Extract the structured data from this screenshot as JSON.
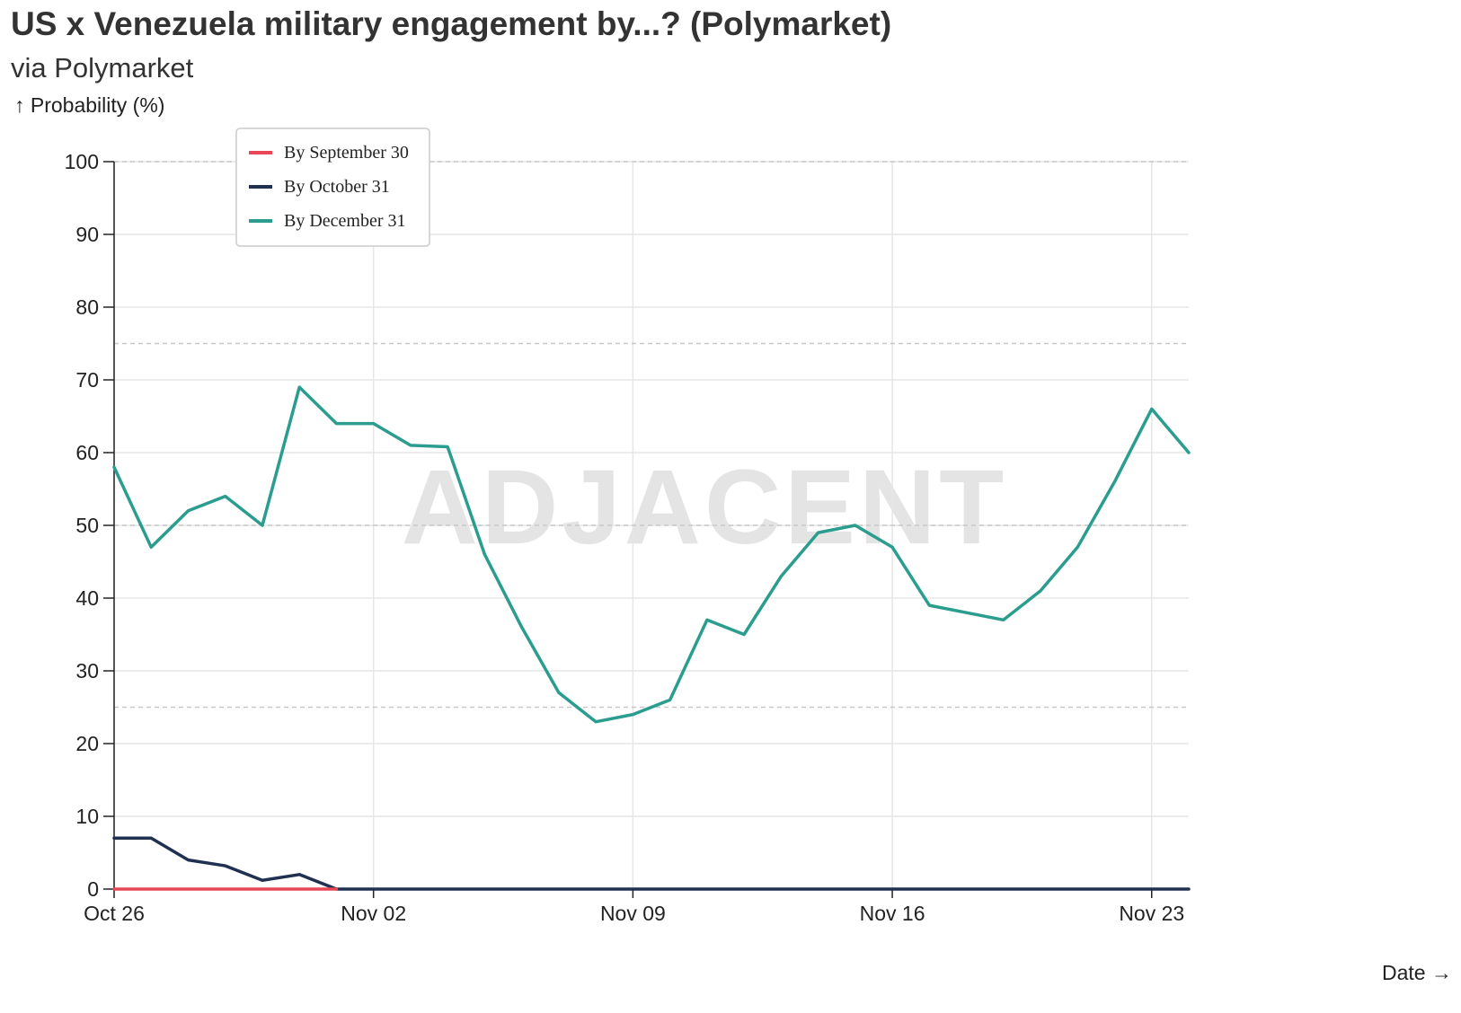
{
  "header": {
    "title": "US x Venezuela military engagement by...? (Polymarket)",
    "subtitle": "via Polymarket"
  },
  "watermark": "ADJACENT",
  "colors": {
    "by_september_30": "#e84855",
    "by_october_31": "#1f3050",
    "by_december_31": "#2a9d8f",
    "grid": "#e6e6e6",
    "dashed_grid": "#c8c8c8",
    "axis": "#222222"
  },
  "chart_data": {
    "type": "line",
    "title": "US x Venezuela military engagement by...? (Polymarket)",
    "subtitle": "via Polymarket",
    "ylabel": "↑ Probability (%)",
    "xlabel": "Date →",
    "ylim": [
      0,
      100
    ],
    "xlim": [
      "2025-10-26",
      "2025-11-24"
    ],
    "yticks": [
      0,
      10,
      20,
      30,
      40,
      50,
      60,
      70,
      80,
      90,
      100
    ],
    "xticks": [
      {
        "date": "2025-10-26",
        "label": "Oct 26"
      },
      {
        "date": "2025-11-02",
        "label": "Nov 02"
      },
      {
        "date": "2025-11-09",
        "label": "Nov 09"
      },
      {
        "date": "2025-11-16",
        "label": "Nov 16"
      },
      {
        "date": "2025-11-23",
        "label": "Nov 23"
      }
    ],
    "dashed_lines": [
      25,
      50,
      75,
      100
    ],
    "grid": true,
    "legend_position": "top-left",
    "series": [
      {
        "name": "By September 30",
        "color": "#e84855",
        "points": [
          [
            "2025-10-26",
            0
          ],
          [
            "2025-10-27",
            0
          ],
          [
            "2025-10-28",
            0
          ],
          [
            "2025-10-29",
            0
          ],
          [
            "2025-10-30",
            0
          ],
          [
            "2025-10-31",
            0
          ],
          [
            "2025-11-01",
            0
          ]
        ]
      },
      {
        "name": "By October 31",
        "color": "#1f3050",
        "points": [
          [
            "2025-10-26",
            7
          ],
          [
            "2025-10-27",
            7
          ],
          [
            "2025-10-28",
            4
          ],
          [
            "2025-10-29",
            3.2
          ],
          [
            "2025-10-30",
            1.2
          ],
          [
            "2025-10-31",
            2
          ],
          [
            "2025-11-01",
            0
          ],
          [
            "2025-11-02",
            0
          ],
          [
            "2025-11-03",
            0
          ],
          [
            "2025-11-04",
            0
          ],
          [
            "2025-11-05",
            0
          ],
          [
            "2025-11-06",
            0
          ],
          [
            "2025-11-07",
            0
          ],
          [
            "2025-11-08",
            0
          ],
          [
            "2025-11-09",
            0
          ],
          [
            "2025-11-10",
            0
          ],
          [
            "2025-11-11",
            0
          ],
          [
            "2025-11-12",
            0
          ],
          [
            "2025-11-13",
            0
          ],
          [
            "2025-11-14",
            0
          ],
          [
            "2025-11-15",
            0
          ],
          [
            "2025-11-16",
            0
          ],
          [
            "2025-11-17",
            0
          ],
          [
            "2025-11-18",
            0
          ],
          [
            "2025-11-19",
            0
          ],
          [
            "2025-11-20",
            0
          ],
          [
            "2025-11-21",
            0
          ],
          [
            "2025-11-22",
            0
          ],
          [
            "2025-11-23",
            0
          ],
          [
            "2025-11-24",
            0
          ]
        ]
      },
      {
        "name": "By December 31",
        "color": "#2a9d8f",
        "points": [
          [
            "2025-10-26",
            58
          ],
          [
            "2025-10-27",
            47
          ],
          [
            "2025-10-28",
            52
          ],
          [
            "2025-10-29",
            54
          ],
          [
            "2025-10-30",
            50
          ],
          [
            "2025-10-31",
            69
          ],
          [
            "2025-11-01",
            64
          ],
          [
            "2025-11-02",
            64
          ],
          [
            "2025-11-03",
            61
          ],
          [
            "2025-11-04",
            60.8
          ],
          [
            "2025-11-05",
            46
          ],
          [
            "2025-11-06",
            36
          ],
          [
            "2025-11-07",
            27
          ],
          [
            "2025-11-08",
            23
          ],
          [
            "2025-11-09",
            24
          ],
          [
            "2025-11-10",
            26
          ],
          [
            "2025-11-11",
            37
          ],
          [
            "2025-11-12",
            35
          ],
          [
            "2025-11-13",
            43
          ],
          [
            "2025-11-14",
            49
          ],
          [
            "2025-11-15",
            50
          ],
          [
            "2025-11-16",
            47
          ],
          [
            "2025-11-17",
            39
          ],
          [
            "2025-11-18",
            38
          ],
          [
            "2025-11-19",
            37
          ],
          [
            "2025-11-20",
            41
          ],
          [
            "2025-11-21",
            47
          ],
          [
            "2025-11-22",
            56
          ],
          [
            "2025-11-23",
            66
          ],
          [
            "2025-11-24",
            60
          ]
        ]
      }
    ]
  }
}
